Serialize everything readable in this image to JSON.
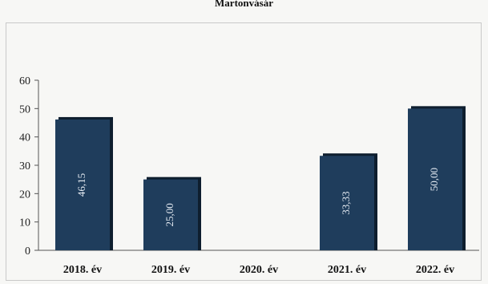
{
  "chart_data": {
    "type": "bar",
    "title": "Martonvásár",
    "xlabel": "",
    "ylabel": "",
    "categories": [
      "2018. év",
      "2019. év",
      "2020. év",
      "2021. év",
      "2022. év"
    ],
    "values": [
      46.15,
      25.0,
      0,
      33.33,
      50.0
    ],
    "data_labels": [
      "46,15",
      "25,00",
      "",
      "33,33",
      "50,00"
    ],
    "yticks": [
      "0",
      "10",
      "20",
      "30",
      "40",
      "50",
      "60"
    ],
    "ylim": [
      0,
      60
    ],
    "grid": false,
    "legend": "none",
    "bar_color": "#1f3d5c",
    "bar_shadow_color": "#0e1e2e"
  }
}
